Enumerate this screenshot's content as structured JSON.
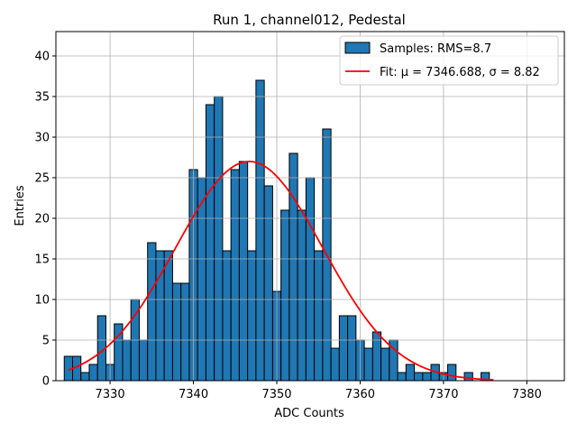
{
  "chart_data": {
    "type": "bar",
    "title": "Run 1, channel012, Pedestal",
    "xlabel": "ADC Counts",
    "ylabel": "Entries",
    "xlim": [
      7323.5,
      7384.5
    ],
    "ylim": [
      0,
      43
    ],
    "xticks": [
      7330,
      7340,
      7350,
      7360,
      7370,
      7380
    ],
    "yticks": [
      0,
      5,
      10,
      15,
      20,
      25,
      30,
      35,
      40
    ],
    "grid": true,
    "legend_position": "top-right",
    "histogram": {
      "name": "Samples: RMS=8.7",
      "color": "#1f77b4",
      "edge_color": "#000000",
      "bin_width": 1,
      "bins": [
        {
          "x": 7325,
          "count": 3
        },
        {
          "x": 7326,
          "count": 3
        },
        {
          "x": 7327,
          "count": 1
        },
        {
          "x": 7328,
          "count": 2
        },
        {
          "x": 7329,
          "count": 8
        },
        {
          "x": 7330,
          "count": 2
        },
        {
          "x": 7331,
          "count": 7
        },
        {
          "x": 7332,
          "count": 5
        },
        {
          "x": 7333,
          "count": 10
        },
        {
          "x": 7334,
          "count": 5
        },
        {
          "x": 7335,
          "count": 17
        },
        {
          "x": 7336,
          "count": 16
        },
        {
          "x": 7337,
          "count": 16
        },
        {
          "x": 7338,
          "count": 12
        },
        {
          "x": 7339,
          "count": 12
        },
        {
          "x": 7340,
          "count": 26
        },
        {
          "x": 7341,
          "count": 25
        },
        {
          "x": 7342,
          "count": 34
        },
        {
          "x": 7343,
          "count": 35
        },
        {
          "x": 7344,
          "count": 16
        },
        {
          "x": 7345,
          "count": 26
        },
        {
          "x": 7346,
          "count": 27
        },
        {
          "x": 7347,
          "count": 16
        },
        {
          "x": 7348,
          "count": 37
        },
        {
          "x": 7349,
          "count": 24
        },
        {
          "x": 7350,
          "count": 11
        },
        {
          "x": 7351,
          "count": 21
        },
        {
          "x": 7352,
          "count": 28
        },
        {
          "x": 7353,
          "count": 21
        },
        {
          "x": 7354,
          "count": 25
        },
        {
          "x": 7355,
          "count": 16
        },
        {
          "x": 7356,
          "count": 31
        },
        {
          "x": 7357,
          "count": 4
        },
        {
          "x": 7358,
          "count": 8
        },
        {
          "x": 7359,
          "count": 8
        },
        {
          "x": 7360,
          "count": 5
        },
        {
          "x": 7361,
          "count": 4
        },
        {
          "x": 7362,
          "count": 6
        },
        {
          "x": 7363,
          "count": 4
        },
        {
          "x": 7364,
          "count": 5
        },
        {
          "x": 7365,
          "count": 1
        },
        {
          "x": 7366,
          "count": 2
        },
        {
          "x": 7367,
          "count": 1
        },
        {
          "x": 7368,
          "count": 1
        },
        {
          "x": 7369,
          "count": 2
        },
        {
          "x": 7370,
          "count": 1
        },
        {
          "x": 7371,
          "count": 2
        },
        {
          "x": 7372,
          "count": 0
        },
        {
          "x": 7373,
          "count": 1
        },
        {
          "x": 7374,
          "count": 0
        },
        {
          "x": 7375,
          "count": 1
        }
      ]
    },
    "fit": {
      "name": "Fit: μ = 7346.688, σ = 8.82",
      "color": "#ff0000",
      "mu": 7346.688,
      "sigma": 8.82,
      "amplitude": 27,
      "x_range": [
        7325,
        7376
      ]
    }
  }
}
